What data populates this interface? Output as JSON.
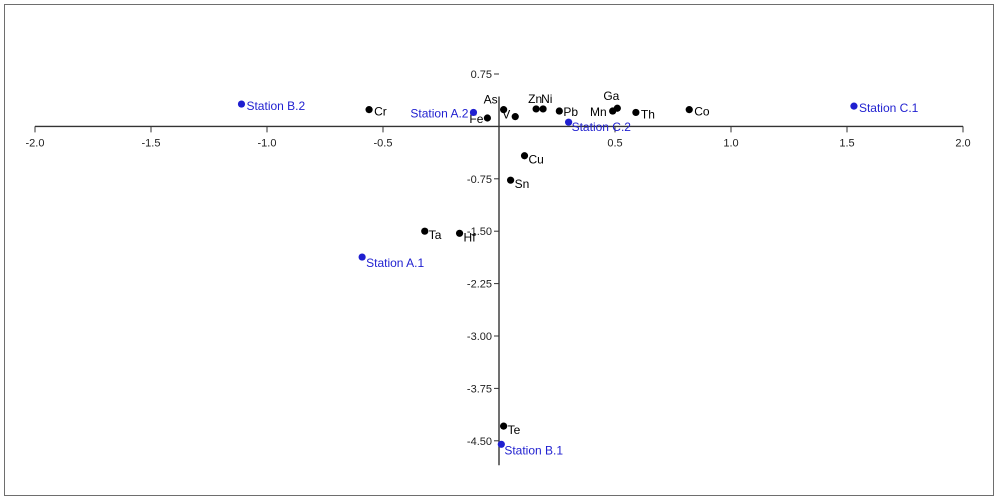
{
  "chart_data": {
    "type": "scatter",
    "title": "",
    "xlabel": "",
    "ylabel": "",
    "xlim": [
      -2.0,
      2.0
    ],
    "ylim": [
      -4.85,
      1.0
    ],
    "grid": false,
    "x_ticks": [
      "-2.0",
      "-1.5",
      "-1.0",
      "-0.5",
      "0.5",
      "1.0",
      "1.5",
      "2.0"
    ],
    "y_ticks": [
      "0.75",
      "-0.75",
      "-1.50",
      "-2.25",
      "-3.00",
      "-3.75",
      "-4.50"
    ],
    "colors": {
      "variables": "#000000",
      "stations": "#1f1fd0",
      "axes": "#333333"
    },
    "series": [
      {
        "name": "",
        "color": "#000000",
        "points": [
          {
            "label": "As",
            "x": 0.02,
            "y": 0.24
          },
          {
            "label": "Zn",
            "x": 0.16,
            "y": 0.25
          },
          {
            "label": "Ni",
            "x": 0.19,
            "y": 0.25
          },
          {
            "label": "Pb",
            "x": 0.26,
            "y": 0.22
          },
          {
            "label": "Ga",
            "x": 0.51,
            "y": 0.26
          },
          {
            "label": "Mn",
            "x": 0.49,
            "y": 0.22
          },
          {
            "label": "Th",
            "x": 0.59,
            "y": 0.2
          },
          {
            "label": "Co",
            "x": 0.82,
            "y": 0.24
          },
          {
            "label": "Cr",
            "x": -0.56,
            "y": 0.24
          },
          {
            "label": "Fe",
            "x": -0.05,
            "y": 0.12
          },
          {
            "label": "V",
            "x": 0.07,
            "y": 0.14
          },
          {
            "label": "Cu",
            "x": 0.11,
            "y": -0.42
          },
          {
            "label": "Sn",
            "x": 0.05,
            "y": -0.77
          },
          {
            "label": "Ta",
            "x": -0.32,
            "y": -1.5
          },
          {
            "label": "Hf",
            "x": -0.17,
            "y": -1.53
          },
          {
            "label": "Te",
            "x": 0.02,
            "y": -4.29
          }
        ]
      },
      {
        "name": "",
        "color": "#1f1fd0",
        "points": [
          {
            "label": "Station B.2",
            "x": -1.11,
            "y": 0.32
          },
          {
            "label": "Station A.2",
            "x": -0.11,
            "y": 0.2
          },
          {
            "label": "Station C.1",
            "x": 1.53,
            "y": 0.29
          },
          {
            "label": "Station C.2",
            "x": 0.3,
            "y": 0.06
          },
          {
            "label": "Station A.1",
            "x": -0.59,
            "y": -1.87
          },
          {
            "label": "Station B.1",
            "x": 0.01,
            "y": -4.55
          }
        ]
      }
    ]
  }
}
